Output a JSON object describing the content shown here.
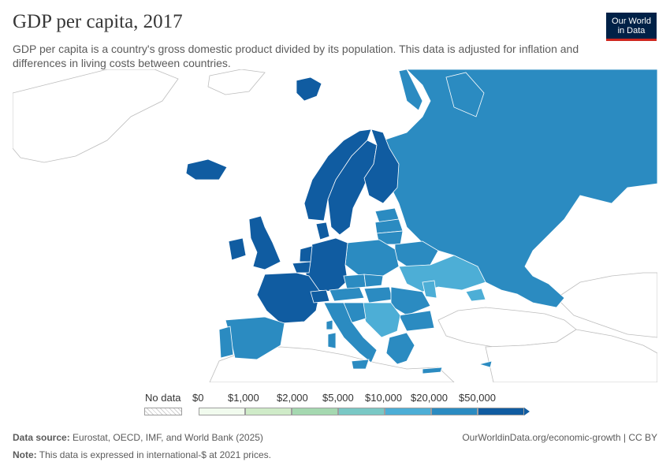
{
  "title": "GDP per capita, 2017",
  "subtitle": "GDP per capita is a country's gross domestic product divided by its population. This data is adjusted for inflation and differences in living costs between countries.",
  "logo": {
    "line1": "Our World",
    "line2": "in Data",
    "bg": "#002147",
    "accent": "#ce261e"
  },
  "legend": {
    "no_data_label": "No data",
    "bins": [
      {
        "label": "$0",
        "color": "#f1fbee"
      },
      {
        "label": "$1,000",
        "color": "#cfebc8"
      },
      {
        "label": "$2,000",
        "color": "#a5d8b0"
      },
      {
        "label": "$5,000",
        "color": "#7ac8c5"
      },
      {
        "label": "$10,000",
        "color": "#4daed6"
      },
      {
        "label": "$20,000",
        "color": "#2b8bc1"
      },
      {
        "label": "$50,000",
        "color": "#105ca1"
      }
    ]
  },
  "footer": {
    "source_label": "Data source:",
    "source_text": "Eurostat, OECD, IMF, and World Bank (2025)",
    "note_label": "Note:",
    "note_text": "This data is expressed in international-$ at 2021 prices.",
    "url": "OurWorldinData.org/economic-growth | CC BY"
  },
  "colors": {
    "high": "#105ca1",
    "mid_high": "#2b8bc1",
    "mid": "#4daed6",
    "no_data": "#ffffff",
    "border": "#ffffff",
    "outline": "#bdbdbd"
  }
}
